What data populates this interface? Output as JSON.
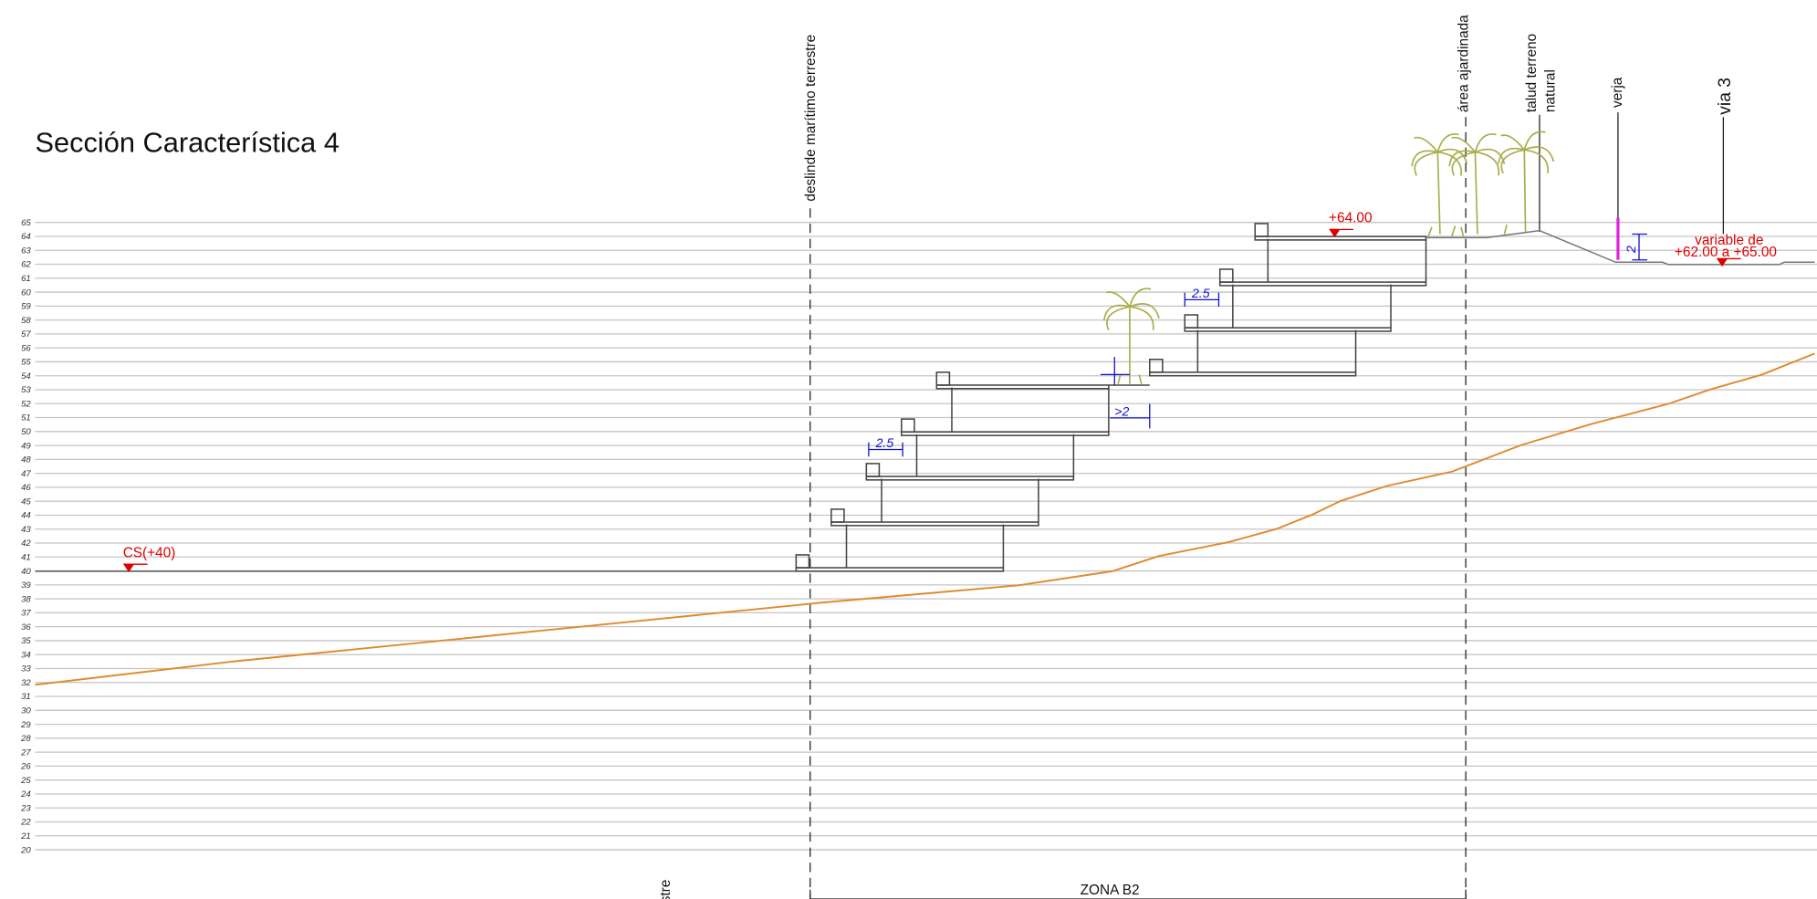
{
  "title": "Sección Característica 4",
  "levels": [
    65,
    64,
    63,
    62,
    61,
    60,
    59,
    58,
    57,
    56,
    55,
    54,
    53,
    52,
    51,
    50,
    49,
    48,
    47,
    46,
    45,
    44,
    43,
    42,
    41,
    40,
    39,
    38,
    37,
    36,
    35,
    34,
    33,
    32,
    31,
    30,
    29,
    28,
    27,
    26,
    25,
    24,
    23,
    22,
    21,
    20
  ],
  "vertical_labels": {
    "deslinde": "deslinde marítimo terrestre",
    "area": "área ajardinada",
    "talud_1": "talud terreno",
    "talud_2": "natural",
    "verja": "verja",
    "via": "via 3",
    "cut": "estre"
  },
  "elevations": {
    "top": "+64.00",
    "cs": "CS(+40)",
    "variable_1": "variable de",
    "variable_2": "+62.00 a +65.00"
  },
  "dimensions": {
    "upper_step": "2.5",
    "lower_step": "2.5",
    "gap": ">2",
    "fence": "2"
  },
  "zone": "ZONA B2"
}
